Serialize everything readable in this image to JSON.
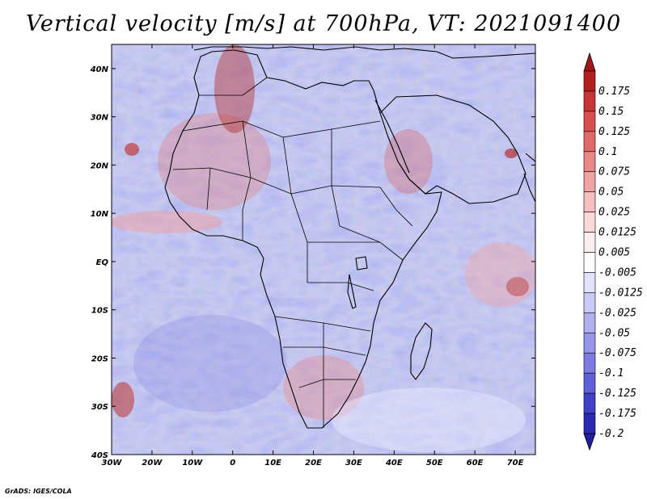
{
  "title": "Vertical velocity [m/s] at 700hPa, VT: 2021091400",
  "credit": "GrADS: IGES/COLA",
  "map": {
    "lon_range": [
      -30,
      75
    ],
    "lat_range": [
      -40,
      45
    ],
    "x_ticks": [
      {
        "lon": -30,
        "label": "30W"
      },
      {
        "lon": -20,
        "label": "20W"
      },
      {
        "lon": -10,
        "label": "10W"
      },
      {
        "lon": 0,
        "label": "0"
      },
      {
        "lon": 10,
        "label": "10E"
      },
      {
        "lon": 20,
        "label": "20E"
      },
      {
        "lon": 30,
        "label": "30E"
      },
      {
        "lon": 40,
        "label": "40E"
      },
      {
        "lon": 50,
        "label": "50E"
      },
      {
        "lon": 60,
        "label": "60E"
      },
      {
        "lon": 70,
        "label": "70E"
      }
    ],
    "y_ticks": [
      {
        "lat": 40,
        "label": "40N"
      },
      {
        "lat": 30,
        "label": "30N"
      },
      {
        "lat": 20,
        "label": "20N"
      },
      {
        "lat": 10,
        "label": "10N"
      },
      {
        "lat": 0,
        "label": "EQ"
      },
      {
        "lat": -10,
        "label": "10S"
      },
      {
        "lat": -20,
        "label": "20S"
      },
      {
        "lat": -30,
        "label": "30S"
      },
      {
        "lat": -40,
        "label": "40S"
      }
    ]
  },
  "colorbar": {
    "levels": [
      {
        "label": "0.175",
        "color": "#b02020"
      },
      {
        "label": "0.15",
        "color": "#c83535"
      },
      {
        "label": "0.125",
        "color": "#d65050"
      },
      {
        "label": "0.1",
        "color": "#e06a6a"
      },
      {
        "label": "0.075",
        "color": "#e98787"
      },
      {
        "label": "0.05",
        "color": "#f0a3a3"
      },
      {
        "label": "0.025",
        "color": "#f6c0c0"
      },
      {
        "label": "0.0125",
        "color": "#fbd9d9"
      },
      {
        "label": "0.005",
        "color": "#fdeeee"
      },
      {
        "label": "-0.005",
        "color": "#ffffff"
      },
      {
        "label": "-0.0125",
        "color": "#e2e2fb"
      },
      {
        "label": "-0.025",
        "color": "#cacaf6"
      },
      {
        "label": "-0.05",
        "color": "#b0b0f0"
      },
      {
        "label": "-0.075",
        "color": "#9696ea"
      },
      {
        "label": "-0.1",
        "color": "#7c7ce2"
      },
      {
        "label": "-0.125",
        "color": "#6060d8"
      },
      {
        "label": "-0.175",
        "color": "#4040c8"
      },
      {
        "label": "-0.2",
        "color": "#2a2ab0"
      }
    ],
    "top_arrow_color": "#a01818",
    "bottom_arrow_color": "#2020a0"
  }
}
